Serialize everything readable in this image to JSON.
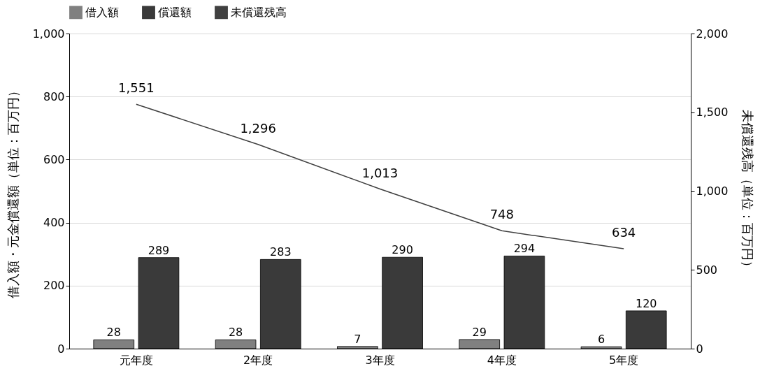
{
  "chart_data": {
    "type": "bar",
    "ylabel": "借入額・元金償還額（単位：百万円）",
    "y2label": "未償還残高（単位：百万円）",
    "categories": [
      "元年度",
      "2年度",
      "3年度",
      "4年度",
      "5年度"
    ],
    "series": [
      {
        "name": "借入額",
        "color": "#808080",
        "values": [
          28,
          28,
          7,
          29,
          6
        ]
      },
      {
        "name": "償還額",
        "color": "#3a3a3a",
        "values": [
          289,
          283,
          290,
          294,
          120
        ]
      },
      {
        "name": "未償還残高",
        "type": "line",
        "axis": "y2",
        "color": "#404040",
        "values": [
          1551,
          1296,
          1013,
          748,
          634
        ],
        "value_labels": [
          "1,551",
          "1,296",
          "1,013",
          "748",
          "634"
        ]
      }
    ],
    "ylim": [
      0,
      1000
    ],
    "yticks": [
      0,
      200,
      400,
      600,
      800,
      {
        "value": 1000,
        "label": "1,000"
      }
    ],
    "y2lim": [
      0,
      2000
    ],
    "y2ticks": [
      0,
      500,
      {
        "value": 1000,
        "label": "1,000"
      },
      {
        "value": 1500,
        "label": "1,500"
      },
      {
        "value": 2000,
        "label": "2,000"
      }
    ],
    "data_labels": true,
    "grid": "y",
    "legend": "top"
  }
}
